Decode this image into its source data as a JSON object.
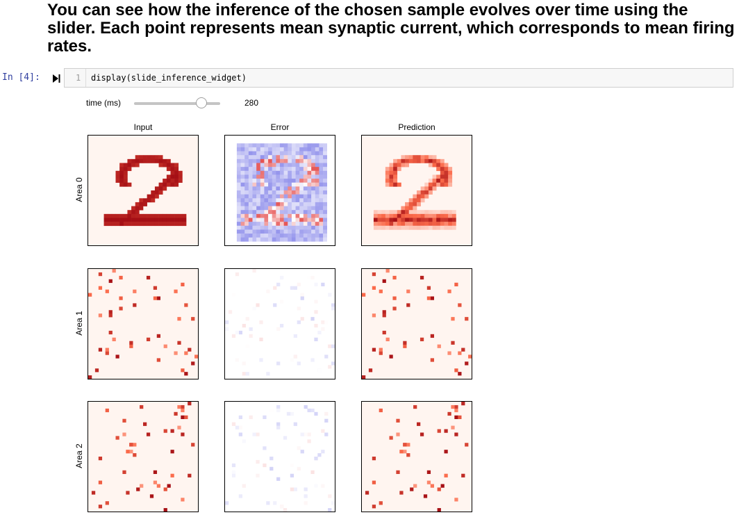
{
  "heading": "You can see how the inference of the chosen sample evolves over time using the slider. Each point represents mean synaptic current, which corresponds to mean firing rates.",
  "cell": {
    "prompt": "In [4]:",
    "line_number": "1",
    "code": "display(slide_inference_widget)"
  },
  "widget": {
    "slider_label": "time (ms)",
    "slider_value": "280"
  },
  "figure": {
    "columns": [
      "Input",
      "Error",
      "Prediction"
    ],
    "rows": [
      "Area 0",
      "Area 1",
      "Area 2"
    ]
  },
  "colors": {
    "prompt": "#303f9f",
    "reds_low": "#fff5f0",
    "reds_high": "#a50f15",
    "blues_high": "#2b2bd9"
  },
  "icons": {
    "run": "run-cell-icon"
  }
}
